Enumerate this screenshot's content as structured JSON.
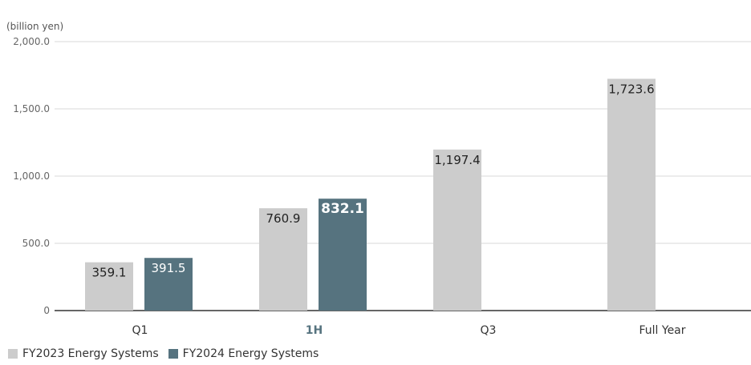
{
  "chart_data": {
    "type": "bar",
    "unit_label": "(billion yen)",
    "categories": [
      "Q1",
      "1H",
      "Q3",
      "Full Year"
    ],
    "highlight_category": "1H",
    "yticks": [
      "2,000.0",
      "1,500.0",
      "1,000.0",
      "500.0",
      "0"
    ],
    "ylim": [
      0,
      2000
    ],
    "grid": true,
    "legend_position": "bottom-left",
    "series": [
      {
        "name": "FY2023 Energy Systems",
        "color": "#cccccc",
        "values": [
          359.1,
          760.9,
          1197.4,
          1723.6
        ],
        "labels": [
          "359.1",
          "760.9",
          "1,197.4",
          "1,723.6"
        ]
      },
      {
        "name": "FY2024 Energy Systems",
        "color": "#56737f",
        "values": [
          391.5,
          832.1,
          null,
          null
        ],
        "labels": [
          "391.5",
          "832.1",
          null,
          null
        ]
      }
    ]
  }
}
